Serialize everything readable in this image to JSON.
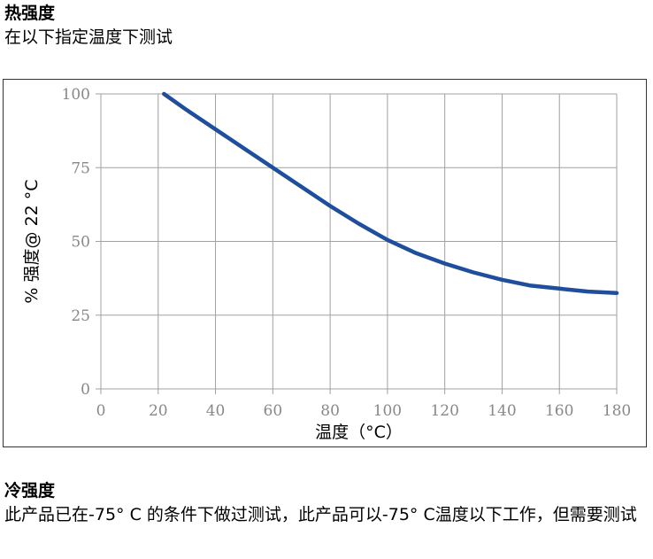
{
  "hot": {
    "title": "热强度",
    "subtitle": "在以下指定温度下测试"
  },
  "chart_data": {
    "type": "line",
    "xlabel": "温度（°C）",
    "ylabel": "% 强度@ 22 °C",
    "xlim": [
      0,
      180
    ],
    "ylim": [
      0,
      100
    ],
    "xticks": [
      0,
      20,
      40,
      60,
      80,
      100,
      120,
      140,
      160,
      180
    ],
    "yticks": [
      0,
      25,
      50,
      75,
      100
    ],
    "grid": true,
    "series": [
      {
        "color": "#1f4e9c",
        "x": [
          22,
          30,
          40,
          50,
          60,
          70,
          80,
          90,
          100,
          110,
          120,
          130,
          140,
          150,
          160,
          170,
          180
        ],
        "y": [
          100,
          94.5,
          88,
          81.5,
          75,
          68.5,
          62,
          56,
          50.5,
          46,
          42.5,
          39.5,
          37,
          35,
          34,
          33,
          32.5
        ]
      }
    ]
  },
  "cold": {
    "title": "冷强度",
    "text": "此产品已在-75° C  的条件下做过测试，此产品可以-75° C温度以下工作，但需要测试"
  }
}
